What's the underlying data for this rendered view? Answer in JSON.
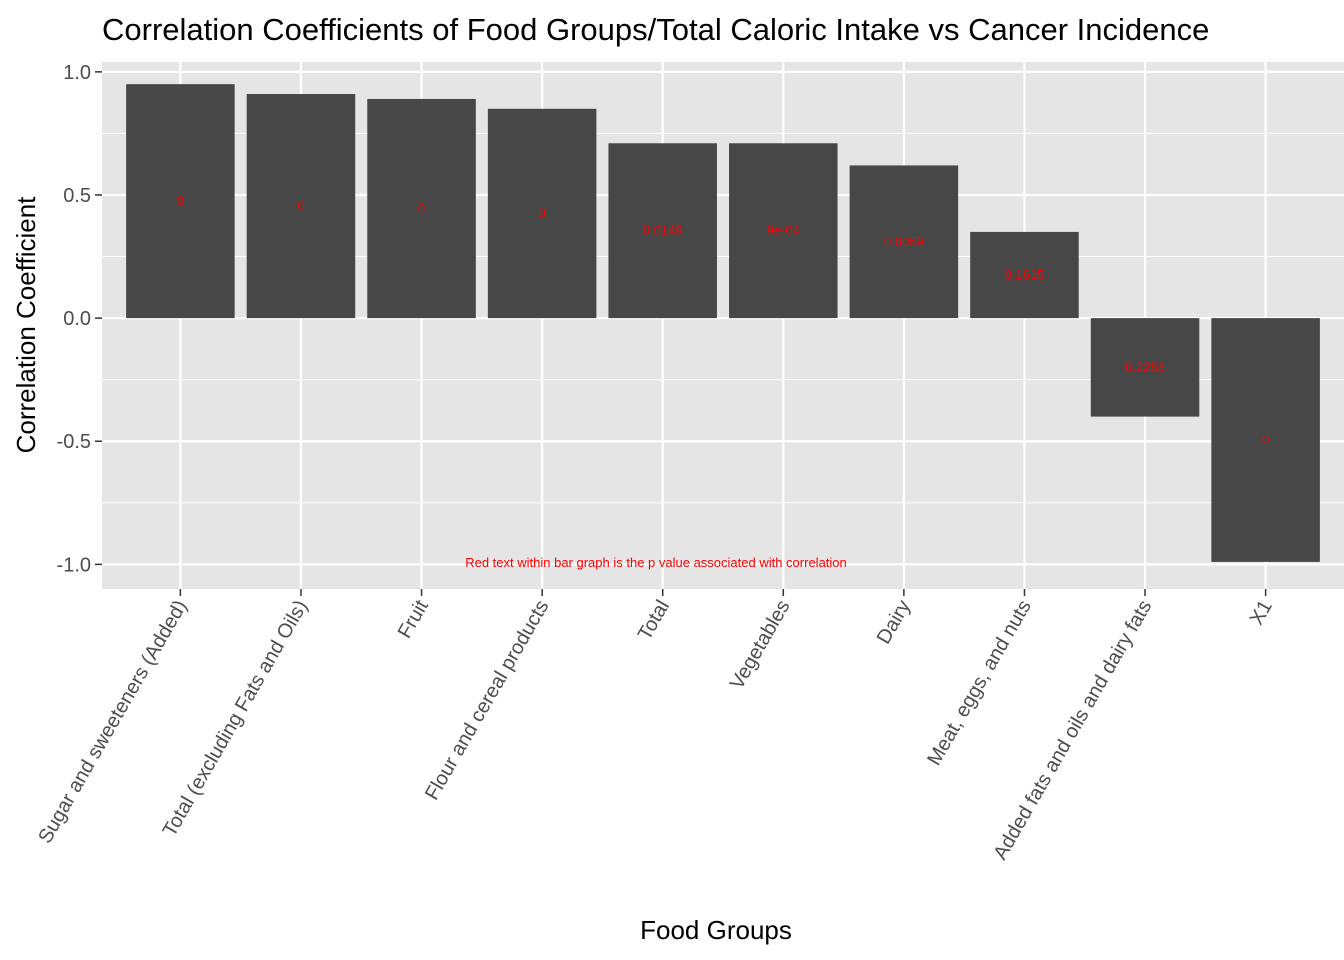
{
  "chart_data": {
    "type": "bar",
    "title": "Correlation Coefficients of Food Groups/Total Caloric Intake vs Cancer Incidence",
    "xlabel": "Food Groups",
    "ylabel": "Correlation Coefficient",
    "categories": [
      "Sugar and sweeteners (Added)",
      "Total (excluding Fats and Oils)",
      "Fruit",
      "Flour and cereal products",
      "Total",
      "Vegetables",
      "Dairy",
      "Meat, eggs, and nuts",
      "Added fats and oils and dairy fats",
      "X1"
    ],
    "values": [
      0.95,
      0.91,
      0.89,
      0.85,
      0.71,
      0.71,
      0.62,
      0.35,
      -0.4,
      -0.99
    ],
    "p_values": [
      "0",
      "0",
      "0",
      "0",
      "0.0149",
      "9e-04",
      "0.0059",
      "0.1615",
      "0.2253",
      "0"
    ],
    "ylim": [
      -1.1,
      1.04
    ],
    "yticks": [
      -1.0,
      -0.5,
      0.0,
      0.5,
      1.0
    ],
    "ytick_labels": [
      "-1.0",
      "-0.5",
      "0.0",
      "0.5",
      "1.0"
    ],
    "annotation": "Red text within bar graph is the p value associated with correlation",
    "grid": true,
    "legend": "none",
    "colors": {
      "bar": "#474747",
      "panel": "#e5e5e5",
      "grid": "#ffffff",
      "annotation": "#ff0000",
      "tick_text": "#4d4d4d"
    }
  }
}
